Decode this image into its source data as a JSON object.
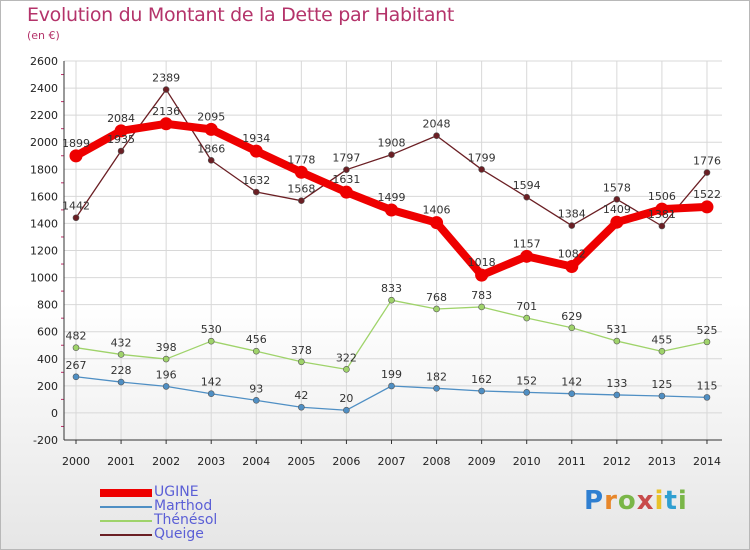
{
  "title": "Evolution du Montant de la Dette par Habitant",
  "unit": "(en €)",
  "logo": {
    "text": "Proxiti",
    "letter_colors": [
      "#2f7fd1",
      "#e8872a",
      "#7ab648",
      "#c84b4b",
      "#e8c12a",
      "#2f9fd1",
      "#7ab648"
    ]
  },
  "chart_data": {
    "type": "line",
    "categories": [
      "2000",
      "2001",
      "2002",
      "2003",
      "2004",
      "2005",
      "2006",
      "2007",
      "2008",
      "2009",
      "2010",
      "2011",
      "2012",
      "2013",
      "2014"
    ],
    "ylim": [
      -200,
      2600
    ],
    "yticks": [
      -200,
      0,
      200,
      400,
      600,
      800,
      1000,
      1200,
      1400,
      1600,
      1800,
      2000,
      2200,
      2400,
      2600
    ],
    "grid": true,
    "legend_position": "bottom-left",
    "series": [
      {
        "name": "UGINE",
        "color": "#ee0000",
        "values": [
          1899,
          2084,
          2136,
          2095,
          1934,
          1778,
          1631,
          1499,
          1406,
          1018,
          1157,
          1082,
          1409,
          1506,
          1522
        ]
      },
      {
        "name": "Marthod",
        "color": "#4f8fc4",
        "values": [
          267,
          228,
          196,
          142,
          93,
          42,
          20,
          199,
          182,
          162,
          152,
          142,
          133,
          125,
          115
        ]
      },
      {
        "name": "Thénésol",
        "color": "#9fd36a",
        "values": [
          482,
          432,
          398,
          530,
          456,
          378,
          322,
          833,
          768,
          783,
          701,
          629,
          531,
          455,
          525
        ]
      },
      {
        "name": "Queige",
        "color": "#6b1f24",
        "values": [
          1442,
          1935,
          2389,
          1866,
          1632,
          1568,
          1797,
          1908,
          2048,
          1799,
          1594,
          1384,
          1578,
          1381,
          1776
        ]
      }
    ]
  }
}
